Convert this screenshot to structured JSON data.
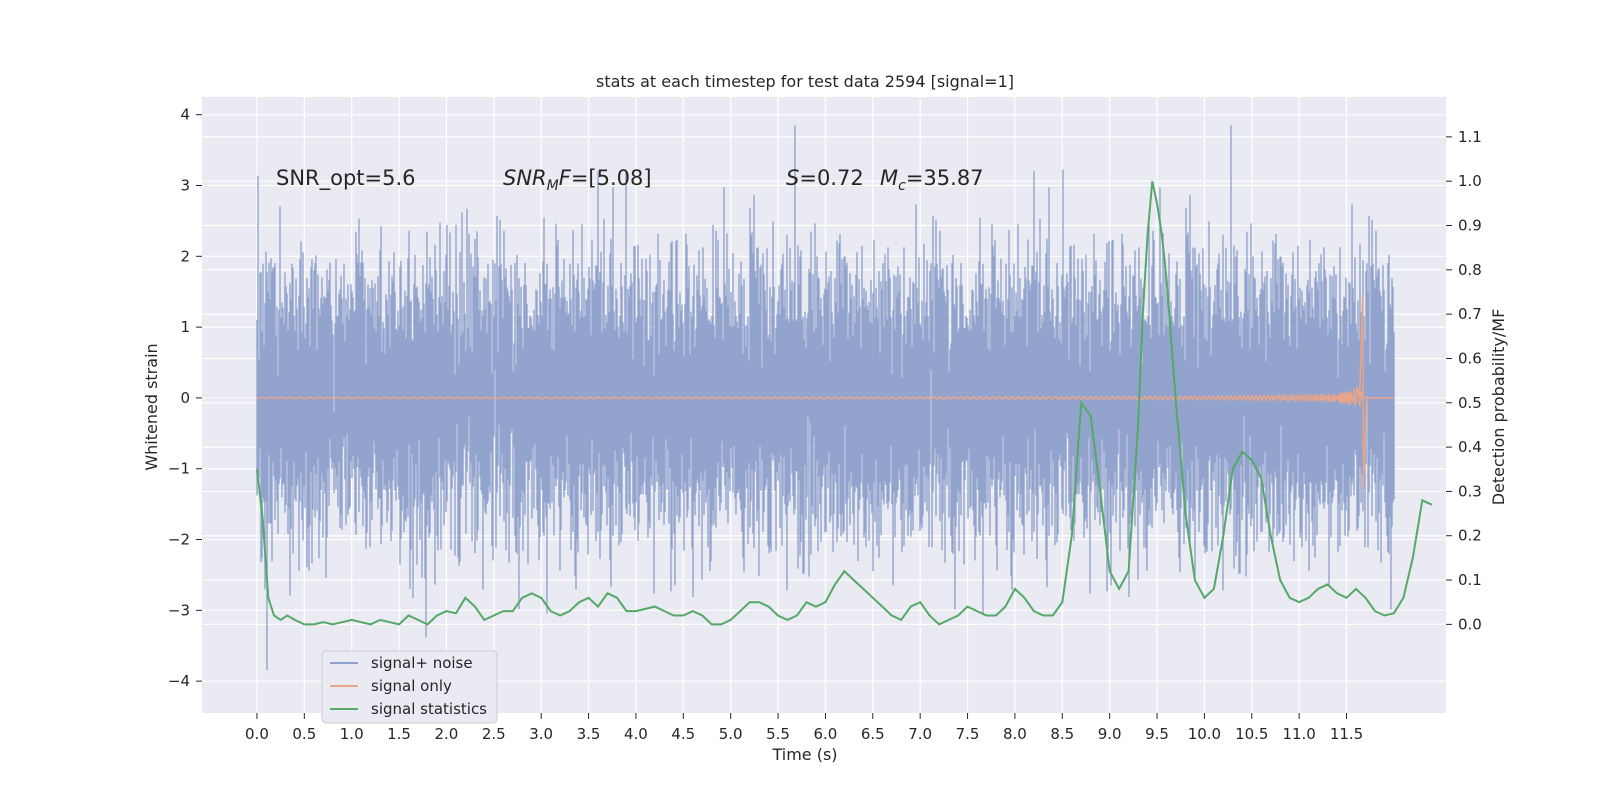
{
  "chart_data": {
    "type": "line",
    "title": "stats at each timestep for test data 2594 [signal=1]",
    "xlabel": "Time (s)",
    "ylabel_left": "Whitened strain",
    "ylabel_right": "Detection probability/MF",
    "xlim": [
      -0.58,
      12.55
    ],
    "ylim_left": [
      -4.45,
      4.25
    ],
    "ylim_right": [
      -0.2,
      1.19
    ],
    "x_ticks": [
      "0.0",
      "0.5",
      "1.0",
      "1.5",
      "2.0",
      "2.5",
      "3.0",
      "3.5",
      "4.0",
      "4.5",
      "5.0",
      "5.5",
      "6.0",
      "6.5",
      "7.0",
      "7.5",
      "8.0",
      "8.5",
      "9.0",
      "9.5",
      "10.0",
      "10.5",
      "11.0",
      "11.5"
    ],
    "y_ticks_left": [
      "4",
      "3",
      "2",
      "1",
      "0",
      "−1",
      "−2",
      "−3",
      "−4"
    ],
    "y_ticks_right": [
      "1.1",
      "1.0",
      "0.9",
      "0.8",
      "0.7",
      "0.6",
      "0.5",
      "0.4",
      "0.3",
      "0.2",
      "0.1",
      "0.0"
    ],
    "grid": true,
    "legend_position": "lower-left",
    "annotations": {
      "snr_opt": "SNR_opt=5.6",
      "snr_mf_sym": "SNR",
      "snr_mf_sub": "M",
      "snr_mf_f": "F",
      "snr_mf_val": "=[5.08]",
      "s_sym": "S",
      "s_val": "=0.72",
      "mc_sym": "M",
      "mc_sub": "c",
      "mc_val": "=35.87"
    },
    "series": [
      {
        "name": "signal+ noise",
        "color": "#8da0cb",
        "x_range": [
          0.0,
          12.0
        ],
        "amplitude_envelope": {
          "typical_std": 0.9,
          "peak_max": 3.85,
          "peak_min": -4.1
        }
      },
      {
        "name": "signal only",
        "color": "#e8a589",
        "x_range": [
          0.0,
          12.0
        ],
        "chirp": {
          "peak_time": 11.67,
          "peak_high": 1.45,
          "peak_low": -1.28
        }
      },
      {
        "name": "signal statistics",
        "color": "#55a868",
        "axis": "right",
        "points": [
          [
            0.0,
            0.35
          ],
          [
            0.06,
            0.24
          ],
          [
            0.12,
            0.06
          ],
          [
            0.18,
            0.02
          ],
          [
            0.25,
            0.01
          ],
          [
            0.32,
            0.02
          ],
          [
            0.4,
            0.01
          ],
          [
            0.5,
            0.0
          ],
          [
            0.6,
            0.0
          ],
          [
            0.7,
            0.005
          ],
          [
            0.8,
            0.0
          ],
          [
            0.9,
            0.005
          ],
          [
            1.0,
            0.01
          ],
          [
            1.1,
            0.005
          ],
          [
            1.2,
            0.0
          ],
          [
            1.3,
            0.01
          ],
          [
            1.4,
            0.005
          ],
          [
            1.5,
            0.0
          ],
          [
            1.6,
            0.02
          ],
          [
            1.7,
            0.01
          ],
          [
            1.8,
            0.0
          ],
          [
            1.9,
            0.02
          ],
          [
            2.0,
            0.03
          ],
          [
            2.1,
            0.025
          ],
          [
            2.2,
            0.06
          ],
          [
            2.3,
            0.04
          ],
          [
            2.4,
            0.01
          ],
          [
            2.5,
            0.02
          ],
          [
            2.6,
            0.03
          ],
          [
            2.7,
            0.03
          ],
          [
            2.8,
            0.06
          ],
          [
            2.9,
            0.07
          ],
          [
            3.0,
            0.06
          ],
          [
            3.1,
            0.03
          ],
          [
            3.2,
            0.02
          ],
          [
            3.3,
            0.03
          ],
          [
            3.4,
            0.05
          ],
          [
            3.5,
            0.06
          ],
          [
            3.6,
            0.04
          ],
          [
            3.7,
            0.07
          ],
          [
            3.8,
            0.06
          ],
          [
            3.9,
            0.03
          ],
          [
            4.0,
            0.03
          ],
          [
            4.1,
            0.035
          ],
          [
            4.2,
            0.04
          ],
          [
            4.3,
            0.03
          ],
          [
            4.4,
            0.02
          ],
          [
            4.5,
            0.02
          ],
          [
            4.6,
            0.03
          ],
          [
            4.7,
            0.02
          ],
          [
            4.8,
            0.0
          ],
          [
            4.9,
            0.0
          ],
          [
            5.0,
            0.01
          ],
          [
            5.1,
            0.03
          ],
          [
            5.2,
            0.05
          ],
          [
            5.3,
            0.05
          ],
          [
            5.4,
            0.04
          ],
          [
            5.5,
            0.02
          ],
          [
            5.6,
            0.01
          ],
          [
            5.7,
            0.02
          ],
          [
            5.8,
            0.05
          ],
          [
            5.9,
            0.04
          ],
          [
            6.0,
            0.05
          ],
          [
            6.1,
            0.09
          ],
          [
            6.2,
            0.12
          ],
          [
            6.3,
            0.1
          ],
          [
            6.4,
            0.08
          ],
          [
            6.5,
            0.06
          ],
          [
            6.6,
            0.04
          ],
          [
            6.7,
            0.02
          ],
          [
            6.8,
            0.01
          ],
          [
            6.9,
            0.04
          ],
          [
            7.0,
            0.05
          ],
          [
            7.1,
            0.02
          ],
          [
            7.2,
            0.0
          ],
          [
            7.3,
            0.01
          ],
          [
            7.4,
            0.02
          ],
          [
            7.5,
            0.04
          ],
          [
            7.6,
            0.03
          ],
          [
            7.7,
            0.02
          ],
          [
            7.8,
            0.02
          ],
          [
            7.9,
            0.04
          ],
          [
            8.0,
            0.08
          ],
          [
            8.1,
            0.06
          ],
          [
            8.2,
            0.03
          ],
          [
            8.3,
            0.02
          ],
          [
            8.4,
            0.02
          ],
          [
            8.5,
            0.05
          ],
          [
            8.6,
            0.2
          ],
          [
            8.7,
            0.5
          ],
          [
            8.8,
            0.47
          ],
          [
            8.9,
            0.3
          ],
          [
            9.0,
            0.12
          ],
          [
            9.1,
            0.08
          ],
          [
            9.2,
            0.12
          ],
          [
            9.3,
            0.45
          ],
          [
            9.35,
            0.7
          ],
          [
            9.4,
            0.88
          ],
          [
            9.45,
            1.0
          ],
          [
            9.5,
            0.95
          ],
          [
            9.55,
            0.88
          ],
          [
            9.6,
            0.78
          ],
          [
            9.7,
            0.5
          ],
          [
            9.8,
            0.25
          ],
          [
            9.9,
            0.1
          ],
          [
            10.0,
            0.06
          ],
          [
            10.1,
            0.08
          ],
          [
            10.2,
            0.2
          ],
          [
            10.3,
            0.35
          ],
          [
            10.4,
            0.39
          ],
          [
            10.5,
            0.37
          ],
          [
            10.6,
            0.33
          ],
          [
            10.7,
            0.2
          ],
          [
            10.8,
            0.1
          ],
          [
            10.9,
            0.06
          ],
          [
            11.0,
            0.05
          ],
          [
            11.1,
            0.06
          ],
          [
            11.2,
            0.08
          ],
          [
            11.3,
            0.09
          ],
          [
            11.4,
            0.07
          ],
          [
            11.5,
            0.06
          ],
          [
            11.6,
            0.08
          ],
          [
            11.7,
            0.06
          ],
          [
            11.8,
            0.03
          ],
          [
            11.9,
            0.02
          ],
          [
            12.0,
            0.025
          ],
          [
            12.1,
            0.06
          ],
          [
            12.2,
            0.15
          ],
          [
            12.3,
            0.28
          ],
          [
            12.4,
            0.27
          ]
        ]
      }
    ]
  }
}
